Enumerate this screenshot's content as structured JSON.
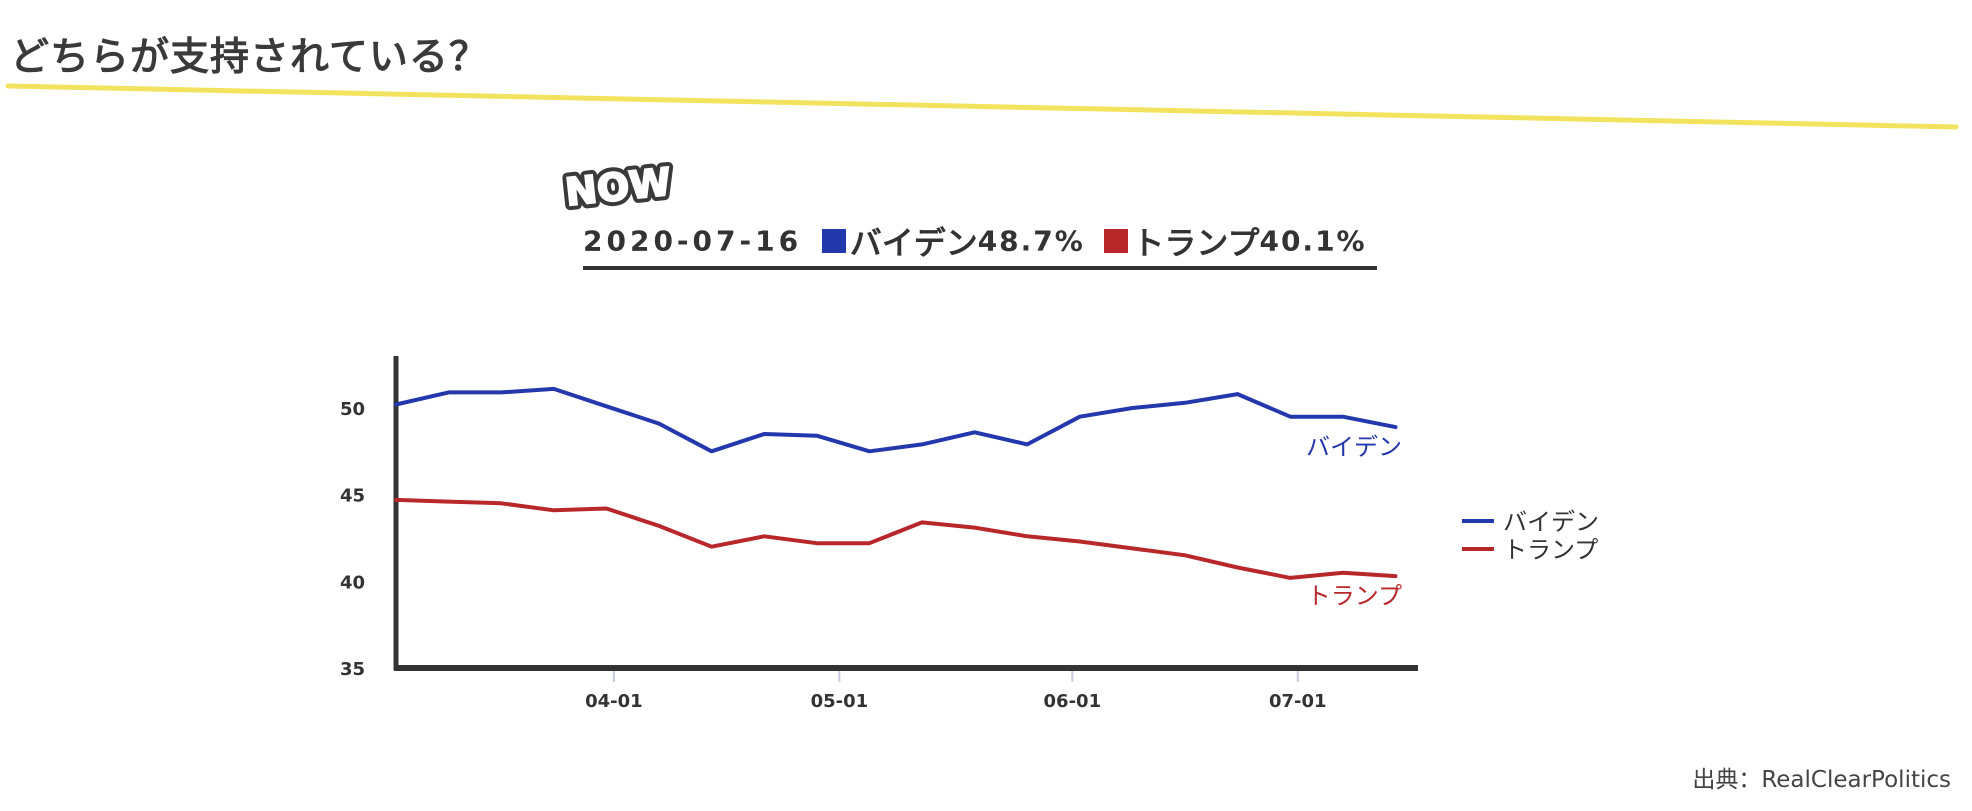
{
  "page": {
    "title": "どちらが支持されている？",
    "source": "出典：RealClearPolitics"
  },
  "badge": {
    "text": "NOW"
  },
  "summary": {
    "date": "2020-07-16",
    "biden_name": "バイデン",
    "biden_value": "48.7%",
    "trump_name": "トランプ",
    "trump_value": "40.1%"
  },
  "colors": {
    "biden": "#2338ad",
    "trump": "#b8282b",
    "accent_underline": "#f2e35e",
    "axis": "#333333"
  },
  "chart_data": {
    "type": "line",
    "x": [
      "2020-03-03",
      "2020-03-10",
      "2020-03-17",
      "2020-03-24",
      "2020-03-31",
      "2020-04-07",
      "2020-04-14",
      "2020-04-21",
      "2020-04-28",
      "2020-05-05",
      "2020-05-12",
      "2020-05-19",
      "2020-05-26",
      "2020-06-02",
      "2020-06-09",
      "2020-06-16",
      "2020-06-23",
      "2020-06-30",
      "2020-07-07",
      "2020-07-14"
    ],
    "x_range": [
      "2020-03-03",
      "2020-07-17"
    ],
    "series": [
      {
        "name": "バイデン",
        "color": "#2338ad",
        "label": "バイデン",
        "values": [
          50.2,
          50.9,
          50.9,
          51.1,
          50.1,
          49.1,
          47.5,
          48.5,
          48.4,
          47.5,
          47.9,
          48.6,
          47.9,
          49.5,
          50.0,
          50.3,
          50.8,
          49.5,
          49.5,
          48.9
        ]
      },
      {
        "name": "トランプ",
        "color": "#b8282b",
        "label": "トランプ",
        "values": [
          44.7,
          44.6,
          44.5,
          44.1,
          44.2,
          43.2,
          42.0,
          42.6,
          42.2,
          42.2,
          43.4,
          43.1,
          42.6,
          42.3,
          41.9,
          41.5,
          40.8,
          40.2,
          40.5,
          40.3
        ]
      }
    ],
    "y_ticks": [
      35,
      40,
      45,
      50
    ],
    "ylim": [
      35,
      53
    ],
    "x_ticks": [
      {
        "date": "2020-04-01",
        "label": "04-01"
      },
      {
        "date": "2020-05-01",
        "label": "05-01"
      },
      {
        "date": "2020-06-01",
        "label": "06-01"
      },
      {
        "date": "2020-07-01",
        "label": "07-01"
      }
    ],
    "legend": {
      "placement": "right",
      "items": [
        {
          "name": "バイデン",
          "color": "#2338ad"
        },
        {
          "name": "トランプ",
          "color": "#b8282b"
        }
      ]
    },
    "grid": false
  }
}
